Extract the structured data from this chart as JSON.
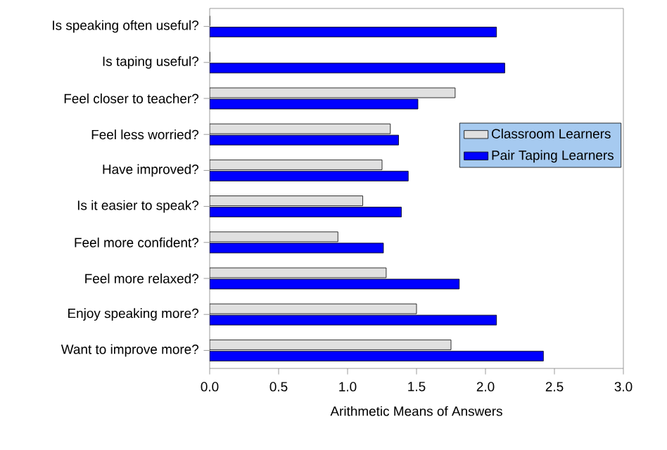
{
  "chart_data": {
    "type": "bar",
    "orientation": "horizontal",
    "xlabel": "Arithmetic Means of Answers",
    "categories": [
      "Is speaking often useful?",
      "Is taping useful?",
      "Feel closer to teacher?",
      "Feel less worried?",
      "Have improved?",
      "Is it easier to speak?",
      "Feel more confident?",
      "Feel more relaxed?",
      "Enjoy speaking more?",
      "Want to improve more?"
    ],
    "series": [
      {
        "name": "Classroom Learners",
        "color": "#e0e0e0",
        "values": [
          0,
          0,
          1.78,
          1.31,
          1.25,
          1.11,
          0.93,
          1.28,
          1.5,
          1.75
        ]
      },
      {
        "name": "Pair Taping Learners",
        "color": "#0000ff",
        "values": [
          2.08,
          2.14,
          1.51,
          1.37,
          1.44,
          1.39,
          1.26,
          1.81,
          2.08,
          2.42
        ]
      }
    ],
    "xlim": [
      0,
      3
    ],
    "xticks": [
      {
        "value": 0,
        "label": "0.0"
      },
      {
        "value": 0.5,
        "label": "0.5"
      },
      {
        "value": 1,
        "label": "1.0"
      },
      {
        "value": 1.5,
        "label": "1.5"
      },
      {
        "value": 2,
        "label": "2.0"
      },
      {
        "value": 2.5,
        "label": "2.5"
      },
      {
        "value": 3,
        "label": "3.0"
      }
    ],
    "legend": "right",
    "grid": false
  }
}
